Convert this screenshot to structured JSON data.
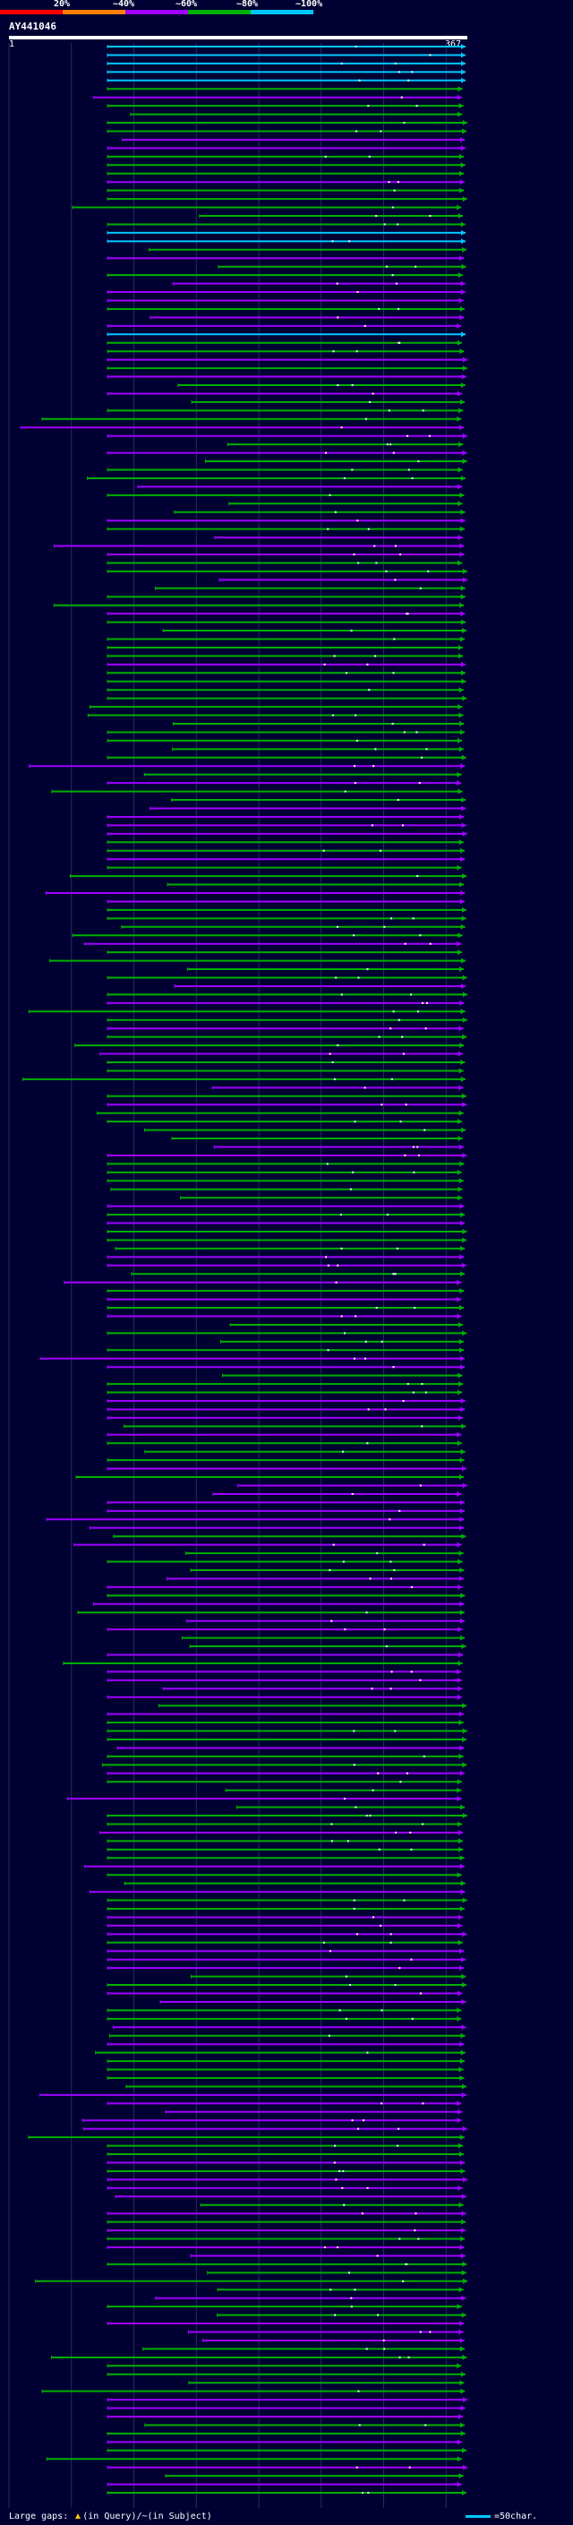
{
  "query": {
    "name": "AY441046",
    "length": 367,
    "start_label": "1",
    "end_label": "367"
  },
  "identity_scale": {
    "labels": [
      "20%",
      "~40%",
      "~60%",
      "~80%",
      "~100%"
    ],
    "colors": [
      "#ff0000",
      "#ff8000",
      "#a000ff",
      "#00b000",
      "#00c8ff"
    ]
  },
  "colors": {
    "background": "#000033",
    "axis": "#ffffff",
    "grid": "#2a2a66",
    "mismatch_mark": "#ffffff",
    "gap_mark": "#ffc800",
    "legend_bar": "#00c8ff"
  },
  "legend": {
    "text_before": "Large gaps:",
    "gap_symbol_note": "(in Query)/",
    "gap_subject_symbol": "~",
    "gap_subject_note": "(in Subject)",
    "scale_text": "=50char."
  },
  "hits": []
}
